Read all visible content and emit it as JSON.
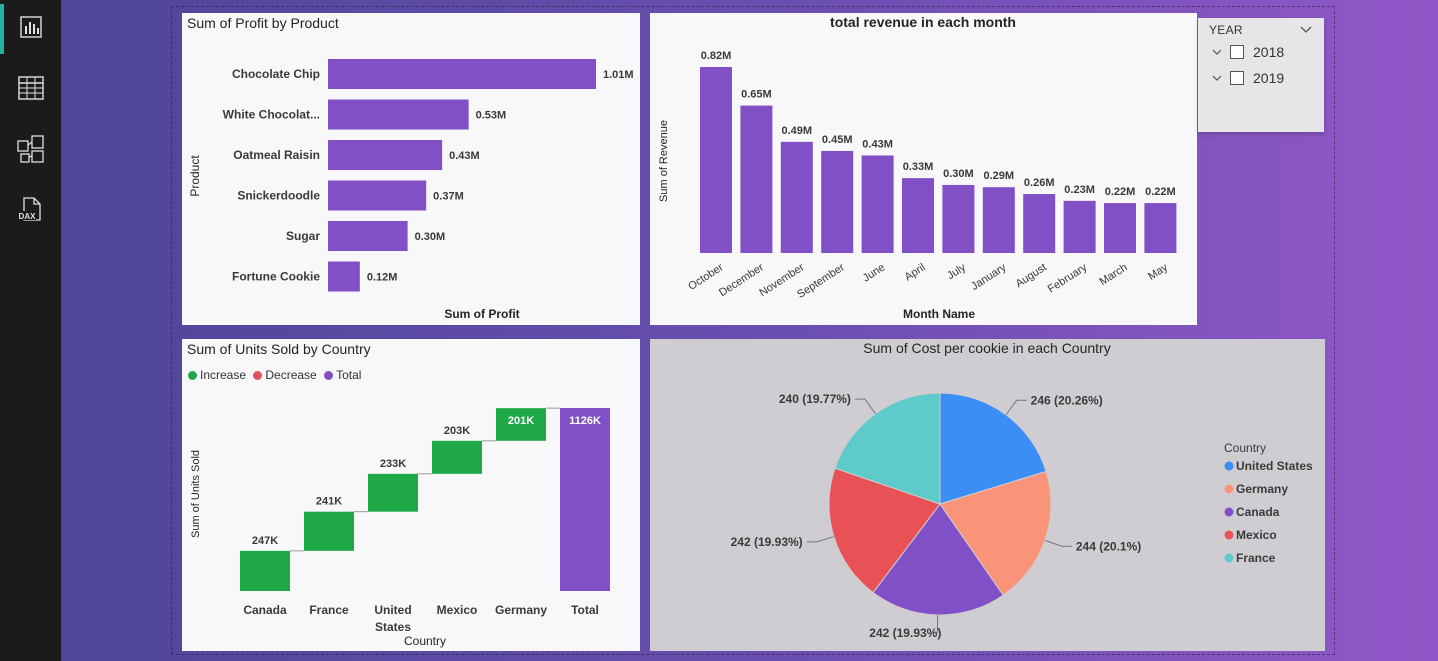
{
  "rail": {
    "items": [
      {
        "name": "report-view-icon"
      },
      {
        "name": "table-view-icon"
      },
      {
        "name": "model-view-icon"
      },
      {
        "name": "dax-query-icon",
        "label": "DAX"
      }
    ]
  },
  "slicer": {
    "title": "YEAR",
    "options": [
      "2018",
      "2019"
    ]
  },
  "colors": {
    "bar": "#8150c6",
    "increase": "#1fa846",
    "decrease": "#e05358",
    "total": "#8150c6",
    "pie": [
      "#3a8ef6",
      "#fa9479",
      "#8150c6",
      "#e85156",
      "#5ecbca"
    ]
  },
  "chart_data": [
    {
      "type": "bar",
      "orientation": "horizontal",
      "title": "Sum of Profit by Product",
      "xlabel": "Sum of Profit",
      "ylabel": "Product",
      "categories": [
        "Chocolate Chip",
        "White Chocolat...",
        "Oatmeal Raisin",
        "Snickerdoodle",
        "Sugar",
        "Fortune Cookie"
      ],
      "values": [
        1.01,
        0.53,
        0.43,
        0.37,
        0.3,
        0.12
      ],
      "labels": [
        "1.01M",
        "0.53M",
        "0.43M",
        "0.37M",
        "0.30M",
        "0.12M"
      ]
    },
    {
      "type": "bar",
      "title": "total revenue in each month",
      "xlabel": "Month Name",
      "ylabel": "Sum of Revenue",
      "categories": [
        "October",
        "December",
        "November",
        "September",
        "June",
        "April",
        "July",
        "January",
        "August",
        "February",
        "March",
        "May"
      ],
      "values": [
        0.82,
        0.65,
        0.49,
        0.45,
        0.43,
        0.33,
        0.3,
        0.29,
        0.26,
        0.23,
        0.22,
        0.22
      ],
      "labels": [
        "0.82M",
        "0.65M",
        "0.49M",
        "0.45M",
        "0.43M",
        "0.33M",
        "0.30M",
        "0.29M",
        "0.26M",
        "0.23M",
        "0.22M",
        "0.22M"
      ]
    },
    {
      "type": "bar",
      "subtype": "waterfall",
      "title": "Sum of Units Sold by Country",
      "xlabel": "Country",
      "ylabel": "Sum of Units Sold",
      "legend": [
        "Increase",
        "Decrease",
        "Total"
      ],
      "categories": [
        "Canada",
        "France",
        "United States",
        "Mexico",
        "Germany",
        "Total"
      ],
      "values": [
        247,
        241,
        233,
        203,
        201,
        1126
      ],
      "labels": [
        "247K",
        "241K",
        "233K",
        "203K",
        "201K",
        "1126K"
      ],
      "kinds": [
        "increase",
        "increase",
        "increase",
        "increase",
        "increase",
        "total"
      ]
    },
    {
      "type": "pie",
      "title": "Sum of Cost per cookie in each Country",
      "legend_title": "Country",
      "legend": [
        "United States",
        "Germany",
        "Canada",
        "Mexico",
        "France"
      ],
      "values": [
        246,
        244,
        242,
        242,
        240
      ],
      "labels": [
        "246 (20.26%)",
        "244 (20.1%)",
        "242 (19.93%)",
        "242 (19.93%)",
        "240 (19.77%)"
      ]
    }
  ]
}
